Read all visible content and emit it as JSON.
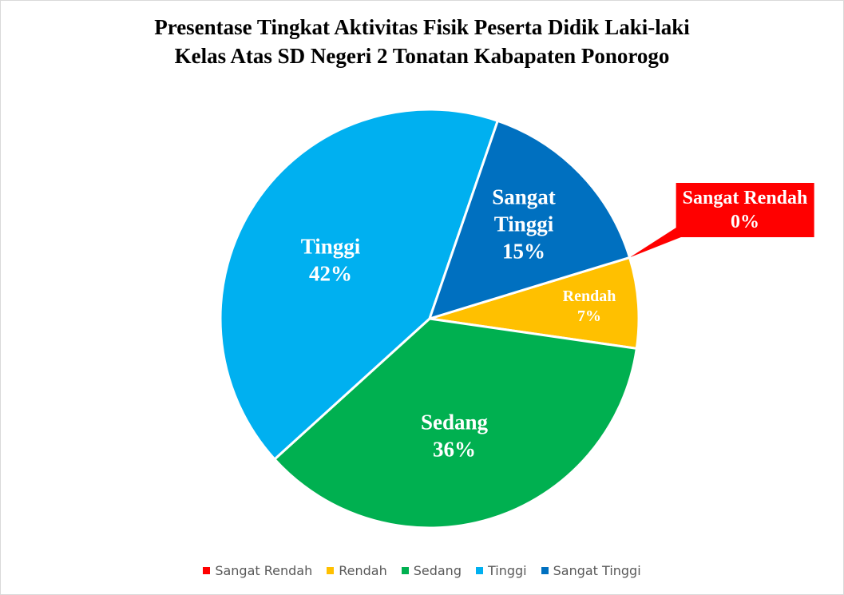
{
  "chart_data": {
    "type": "pie",
    "title": [
      "Presentase Tingkat Aktivitas Fisik Peserta Didik Laki-laki",
      "Kelas Atas SD Negeri 2 Tonatan Kabapaten Ponorogo"
    ],
    "categories": [
      "Sangat Rendah",
      "Rendah",
      "Sedang",
      "Tinggi",
      "Sangat Tinggi"
    ],
    "values": [
      0,
      7,
      36,
      42,
      15
    ],
    "value_labels": [
      "0%",
      "7%",
      "36%",
      "42%",
      "15%"
    ],
    "colors": [
      "#ff0000",
      "#ffc000",
      "#00b050",
      "#00b0f0",
      "#0070c0"
    ],
    "legend": "bottom"
  }
}
